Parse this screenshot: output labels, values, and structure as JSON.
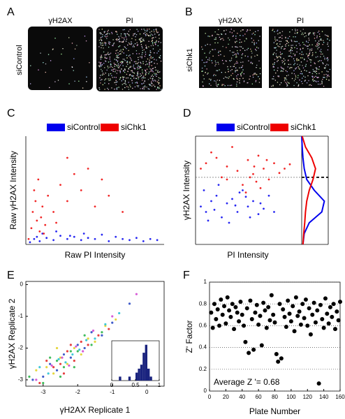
{
  "images": [
    {
      "panel": "A",
      "row_label": "siControl",
      "columns": [
        "γH2AX",
        "PI"
      ]
    },
    {
      "panel": "B",
      "row_label": "siChk1",
      "columns": [
        "γH2AX",
        "PI"
      ]
    }
  ],
  "chart_data": [
    {
      "type": "scatter",
      "panel": "C",
      "xlabel": "Raw PI Intensity",
      "ylabel": "Raw γH2AX Intensity",
      "xlim": [
        0,
        1
      ],
      "ylim": [
        0,
        1
      ],
      "series": [
        {
          "name": "siControl",
          "color": "#0000ee",
          "x": [
            0.03,
            0.06,
            0.1,
            0.15,
            0.2,
            0.25,
            0.3,
            0.35,
            0.4,
            0.45,
            0.5,
            0.55,
            0.6,
            0.65,
            0.7,
            0.75,
            0.8,
            0.85,
            0.9,
            0.95,
            0.12,
            0.22,
            0.32,
            0.42,
            0.08
          ],
          "values": [
            0.02,
            0.05,
            0.03,
            0.06,
            0.04,
            0.08,
            0.05,
            0.07,
            0.04,
            0.06,
            0.05,
            0.09,
            0.03,
            0.07,
            0.05,
            0.04,
            0.06,
            0.03,
            0.05,
            0.04,
            0.1,
            0.12,
            0.08,
            0.1,
            0.07
          ]
        },
        {
          "name": "siChk1",
          "color": "#ee0000",
          "x": [
            0.02,
            0.04,
            0.05,
            0.07,
            0.08,
            0.1,
            0.12,
            0.06,
            0.09,
            0.11,
            0.14,
            0.16,
            0.2,
            0.25,
            0.3,
            0.35,
            0.4,
            0.45,
            0.5,
            0.55,
            0.6,
            0.7,
            0.3,
            0.22,
            0.13
          ],
          "values": [
            0.05,
            0.15,
            0.3,
            0.4,
            0.22,
            0.12,
            0.35,
            0.5,
            0.6,
            0.25,
            0.18,
            0.45,
            0.3,
            0.55,
            0.4,
            0.65,
            0.5,
            0.7,
            0.35,
            0.6,
            0.45,
            0.3,
            0.8,
            0.2,
            0.1
          ]
        }
      ]
    },
    {
      "type": "scatter",
      "panel": "D",
      "xlabel": "PI Intensity",
      "ylabel": "γH2AX Intensity",
      "xlim": [
        0,
        1
      ],
      "ylim": [
        0,
        1
      ],
      "threshold": 0.62,
      "series": [
        {
          "name": "siControl",
          "color": "#0000ee",
          "x": [
            0.05,
            0.1,
            0.15,
            0.2,
            0.25,
            0.3,
            0.35,
            0.4,
            0.45,
            0.5,
            0.55,
            0.6,
            0.65,
            0.7,
            0.75,
            0.12,
            0.22,
            0.32,
            0.42,
            0.52,
            0.08,
            0.18,
            0.38,
            0.48,
            0.62
          ],
          "values": [
            0.35,
            0.3,
            0.4,
            0.45,
            0.25,
            0.38,
            0.42,
            0.3,
            0.5,
            0.35,
            0.4,
            0.28,
            0.33,
            0.45,
            0.3,
            0.22,
            0.55,
            0.2,
            0.48,
            0.25,
            0.5,
            0.32,
            0.36,
            0.44,
            0.38
          ]
        },
        {
          "name": "siChk1",
          "color": "#ee0000",
          "x": [
            0.05,
            0.1,
            0.2,
            0.3,
            0.4,
            0.5,
            0.55,
            0.6,
            0.65,
            0.7,
            0.75,
            0.8,
            0.45,
            0.52,
            0.58,
            0.35,
            0.25,
            0.15,
            0.62,
            0.68,
            0.48,
            0.56,
            0.3,
            0.85,
            0.9
          ],
          "values": [
            0.7,
            0.75,
            0.8,
            0.72,
            0.68,
            0.78,
            0.65,
            0.82,
            0.7,
            0.6,
            0.75,
            0.66,
            0.55,
            0.62,
            0.58,
            0.9,
            0.62,
            0.85,
            0.52,
            0.78,
            0.48,
            0.72,
            0.6,
            0.7,
            0.74
          ]
        }
      ],
      "density": {
        "xlim": [
          0,
          1
        ],
        "y": [
          0,
          0.1,
          0.2,
          0.3,
          0.4,
          0.5,
          0.6,
          0.7,
          0.8,
          0.9,
          1
        ],
        "series": [
          {
            "color": "#0000ee",
            "values": [
              0.05,
              0.1,
              0.3,
              0.8,
              0.9,
              0.5,
              0.2,
              0.1,
              0.05,
              0.02,
              0
            ]
          },
          {
            "color": "#ee0000",
            "values": [
              0.05,
              0.08,
              0.12,
              0.15,
              0.2,
              0.3,
              0.45,
              0.55,
              0.4,
              0.15,
              0.02
            ]
          }
        ]
      }
    },
    {
      "type": "scatter",
      "panel": "E",
      "xlabel": "γH2AX Replicate 1",
      "ylabel": "γH2AX Replicate 2",
      "xlim": [
        -3.5,
        0.5
      ],
      "ylim": [
        -3.2,
        0.1
      ],
      "xticks": [
        -3,
        -2,
        -1,
        0
      ],
      "yticks": [
        -3,
        -2,
        -1,
        0
      ],
      "series": [
        {
          "color": "#1f3fbf",
          "x": [
            -3.3,
            -3,
            -2.8,
            -2.6,
            -2.4,
            -2.2,
            -2,
            -1.8,
            -1.6,
            -1.3,
            -1,
            -0.5
          ],
          "values": [
            -3,
            -2.9,
            -2.5,
            -2.7,
            -2.2,
            -2.3,
            -1.9,
            -2,
            -1.5,
            -1.6,
            -1.2,
            -0.6
          ]
        },
        {
          "color": "#e0d020",
          "x": [
            -3.2,
            -2.9,
            -2.7,
            -2.5,
            -2.3,
            -2.1,
            -1.9,
            -1.7,
            -1.5,
            -1.2,
            -0.9,
            -2.6
          ],
          "values": [
            -2.7,
            -2.6,
            -2.8,
            -2.3,
            -2.5,
            -2,
            -2.2,
            -1.7,
            -1.8,
            -1.3,
            -1.1,
            -2
          ]
        },
        {
          "color": "#e02020",
          "x": [
            -3.1,
            -2.9,
            -2.7,
            -2.5,
            -2.3,
            -2.1,
            -1.9,
            -1.7,
            -1.4,
            -1.1,
            -2.4,
            -2.2
          ],
          "values": [
            -3.1,
            -2.4,
            -2.6,
            -2.5,
            -2.1,
            -2.4,
            -1.8,
            -1.9,
            -1.6,
            -1.4,
            -2.8,
            -1.9
          ]
        },
        {
          "color": "#20b040",
          "x": [
            -3.4,
            -3,
            -2.8,
            -2.6,
            -2.4,
            -2.2,
            -2,
            -1.8,
            -1.6,
            -1.3,
            -2.5,
            -2.1
          ],
          "values": [
            -2.9,
            -3.1,
            -2.3,
            -2.4,
            -2.6,
            -2.1,
            -2.1,
            -1.6,
            -1.9,
            -1.5,
            -2.9,
            -2.6
          ]
        },
        {
          "color": "#20c0d0",
          "x": [
            -3.1,
            -2.85,
            -2.55,
            -2.35,
            -2.15,
            -1.95,
            -1.75,
            -1.5,
            -1.2,
            -0.8
          ],
          "values": [
            -2.6,
            -2.8,
            -2.35,
            -2.45,
            -2.2,
            -2.05,
            -1.75,
            -1.7,
            -1.25,
            -0.9
          ]
        },
        {
          "color": "#d040d0",
          "x": [
            -3.2,
            -2.75,
            -2.45,
            -2.25,
            -2.05,
            -1.85,
            -1.55,
            -1,
            -0.3
          ],
          "values": [
            -3,
            -2.55,
            -2.3,
            -2.55,
            -1.95,
            -2.1,
            -1.45,
            -1,
            -0.3
          ]
        }
      ],
      "inset": {
        "type": "histogram",
        "color": "#1a237e",
        "bins": [
          0,
          0.05,
          0.1,
          0.15,
          0.2,
          0.25,
          0.3,
          0.35,
          0.4,
          0.45,
          0.5,
          0.55,
          0.6,
          0.65,
          0.7,
          0.75,
          0.8,
          0.85,
          0.9,
          0.95,
          1
        ],
        "values": [
          0,
          0,
          0,
          1,
          0,
          0,
          0,
          1,
          0,
          0,
          2,
          3,
          4,
          7,
          9,
          3,
          1,
          0,
          0,
          0
        ],
        "xlim": [
          0,
          1
        ],
        "ylim": [
          0,
          10
        ],
        "xticks": [
          0,
          0.5,
          1
        ]
      }
    },
    {
      "type": "scatter",
      "panel": "F",
      "xlabel": "Plate Number",
      "ylabel": "Z' Factor",
      "xlim": [
        0,
        160
      ],
      "ylim": [
        0,
        1
      ],
      "xticks": [
        0,
        20,
        40,
        60,
        80,
        100,
        120,
        140,
        160
      ],
      "yticks": [
        0,
        0.2,
        0.4,
        0.6,
        0.8,
        1
      ],
      "grid": true,
      "annotation": "Average Z '= 0.68",
      "series": [
        {
          "color": "#000000",
          "x": [
            2,
            4,
            6,
            8,
            10,
            12,
            14,
            16,
            18,
            20,
            22,
            24,
            26,
            28,
            30,
            32,
            34,
            36,
            38,
            40,
            42,
            44,
            46,
            48,
            50,
            52,
            54,
            56,
            58,
            60,
            62,
            64,
            66,
            68,
            70,
            72,
            74,
            76,
            78,
            80,
            82,
            84,
            86,
            88,
            90,
            92,
            94,
            96,
            98,
            100,
            102,
            104,
            106,
            108,
            110,
            112,
            114,
            116,
            118,
            120,
            122,
            124,
            126,
            128,
            130,
            132,
            134,
            136,
            138,
            140,
            142,
            144,
            146,
            148,
            150,
            152,
            154,
            156,
            158,
            160
          ],
          "values": [
            0.72,
            0.58,
            0.8,
            0.66,
            0.75,
            0.6,
            0.84,
            0.7,
            0.78,
            0.62,
            0.86,
            0.74,
            0.68,
            0.8,
            0.57,
            0.77,
            0.72,
            0.64,
            0.82,
            0.7,
            0.6,
            0.45,
            0.76,
            0.35,
            0.83,
            0.66,
            0.38,
            0.72,
            0.79,
            0.61,
            0.69,
            0.42,
            0.81,
            0.74,
            0.58,
            0.77,
            0.65,
            0.88,
            0.7,
            0.63,
            0.34,
            0.27,
            0.8,
            0.3,
            0.75,
            0.68,
            0.59,
            0.83,
            0.71,
            0.64,
            0.78,
            0.55,
            0.86,
            0.69,
            0.73,
            0.61,
            0.8,
            0.67,
            0.84,
            0.6,
            0.76,
            0.52,
            0.7,
            0.81,
            0.63,
            0.74,
            0.07,
            0.79,
            0.66,
            0.58,
            0.85,
            0.71,
            0.62,
            0.77,
            0.68,
            0.8,
            0.57,
            0.73,
            0.65,
            0.82
          ]
        }
      ]
    }
  ]
}
